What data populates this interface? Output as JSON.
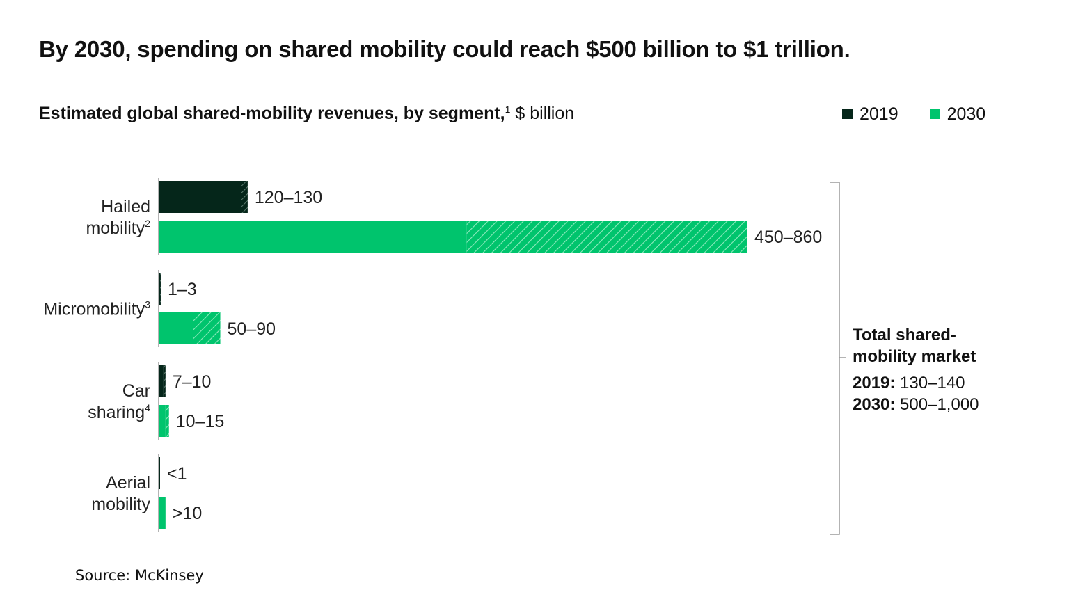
{
  "title": "By 2030, spending on shared mobility could reach $500 billion to $1 trillion.",
  "subtitle": {
    "text": "Estimated global shared-mobility revenues, by segment,",
    "footnote": "1",
    "unit": " $ billion"
  },
  "legend": [
    {
      "label": "2019",
      "color": "#05261a"
    },
    {
      "label": "2030",
      "color": "#00c46d"
    }
  ],
  "total": {
    "heading": "Total shared-mobility market",
    "rows": [
      {
        "year": "2019:",
        "value": " 130–140"
      },
      {
        "year": "2030:",
        "value": " 500–1,000"
      }
    ]
  },
  "source": "Source: McKinsey",
  "chart_data": {
    "type": "bar",
    "orientation": "horizontal",
    "unit": "$ billion",
    "hatched_segment_means": "range between low and high estimate",
    "categories": [
      {
        "lines": [
          "Hailed",
          "mobility"
        ],
        "footnote": "2"
      },
      {
        "lines": [
          "Micromobility"
        ],
        "footnote": "3"
      },
      {
        "lines": [
          "Car",
          "sharing"
        ],
        "footnote": "4"
      },
      {
        "lines": [
          "Aerial",
          "mobility"
        ],
        "footnote": ""
      }
    ],
    "series": [
      {
        "name": "2019",
        "color": "#05261a",
        "low": [
          120,
          1,
          7,
          0.3
        ],
        "high": [
          130,
          3,
          10,
          0.3
        ],
        "labels": [
          "120–130",
          "1–3",
          "7–10",
          "<1"
        ]
      },
      {
        "name": "2030",
        "color": "#00c46d",
        "low": [
          450,
          50,
          10,
          10
        ],
        "high": [
          860,
          90,
          15,
          10
        ],
        "labels": [
          "450–860",
          "50–90",
          "10–15",
          ">10"
        ]
      }
    ]
  }
}
